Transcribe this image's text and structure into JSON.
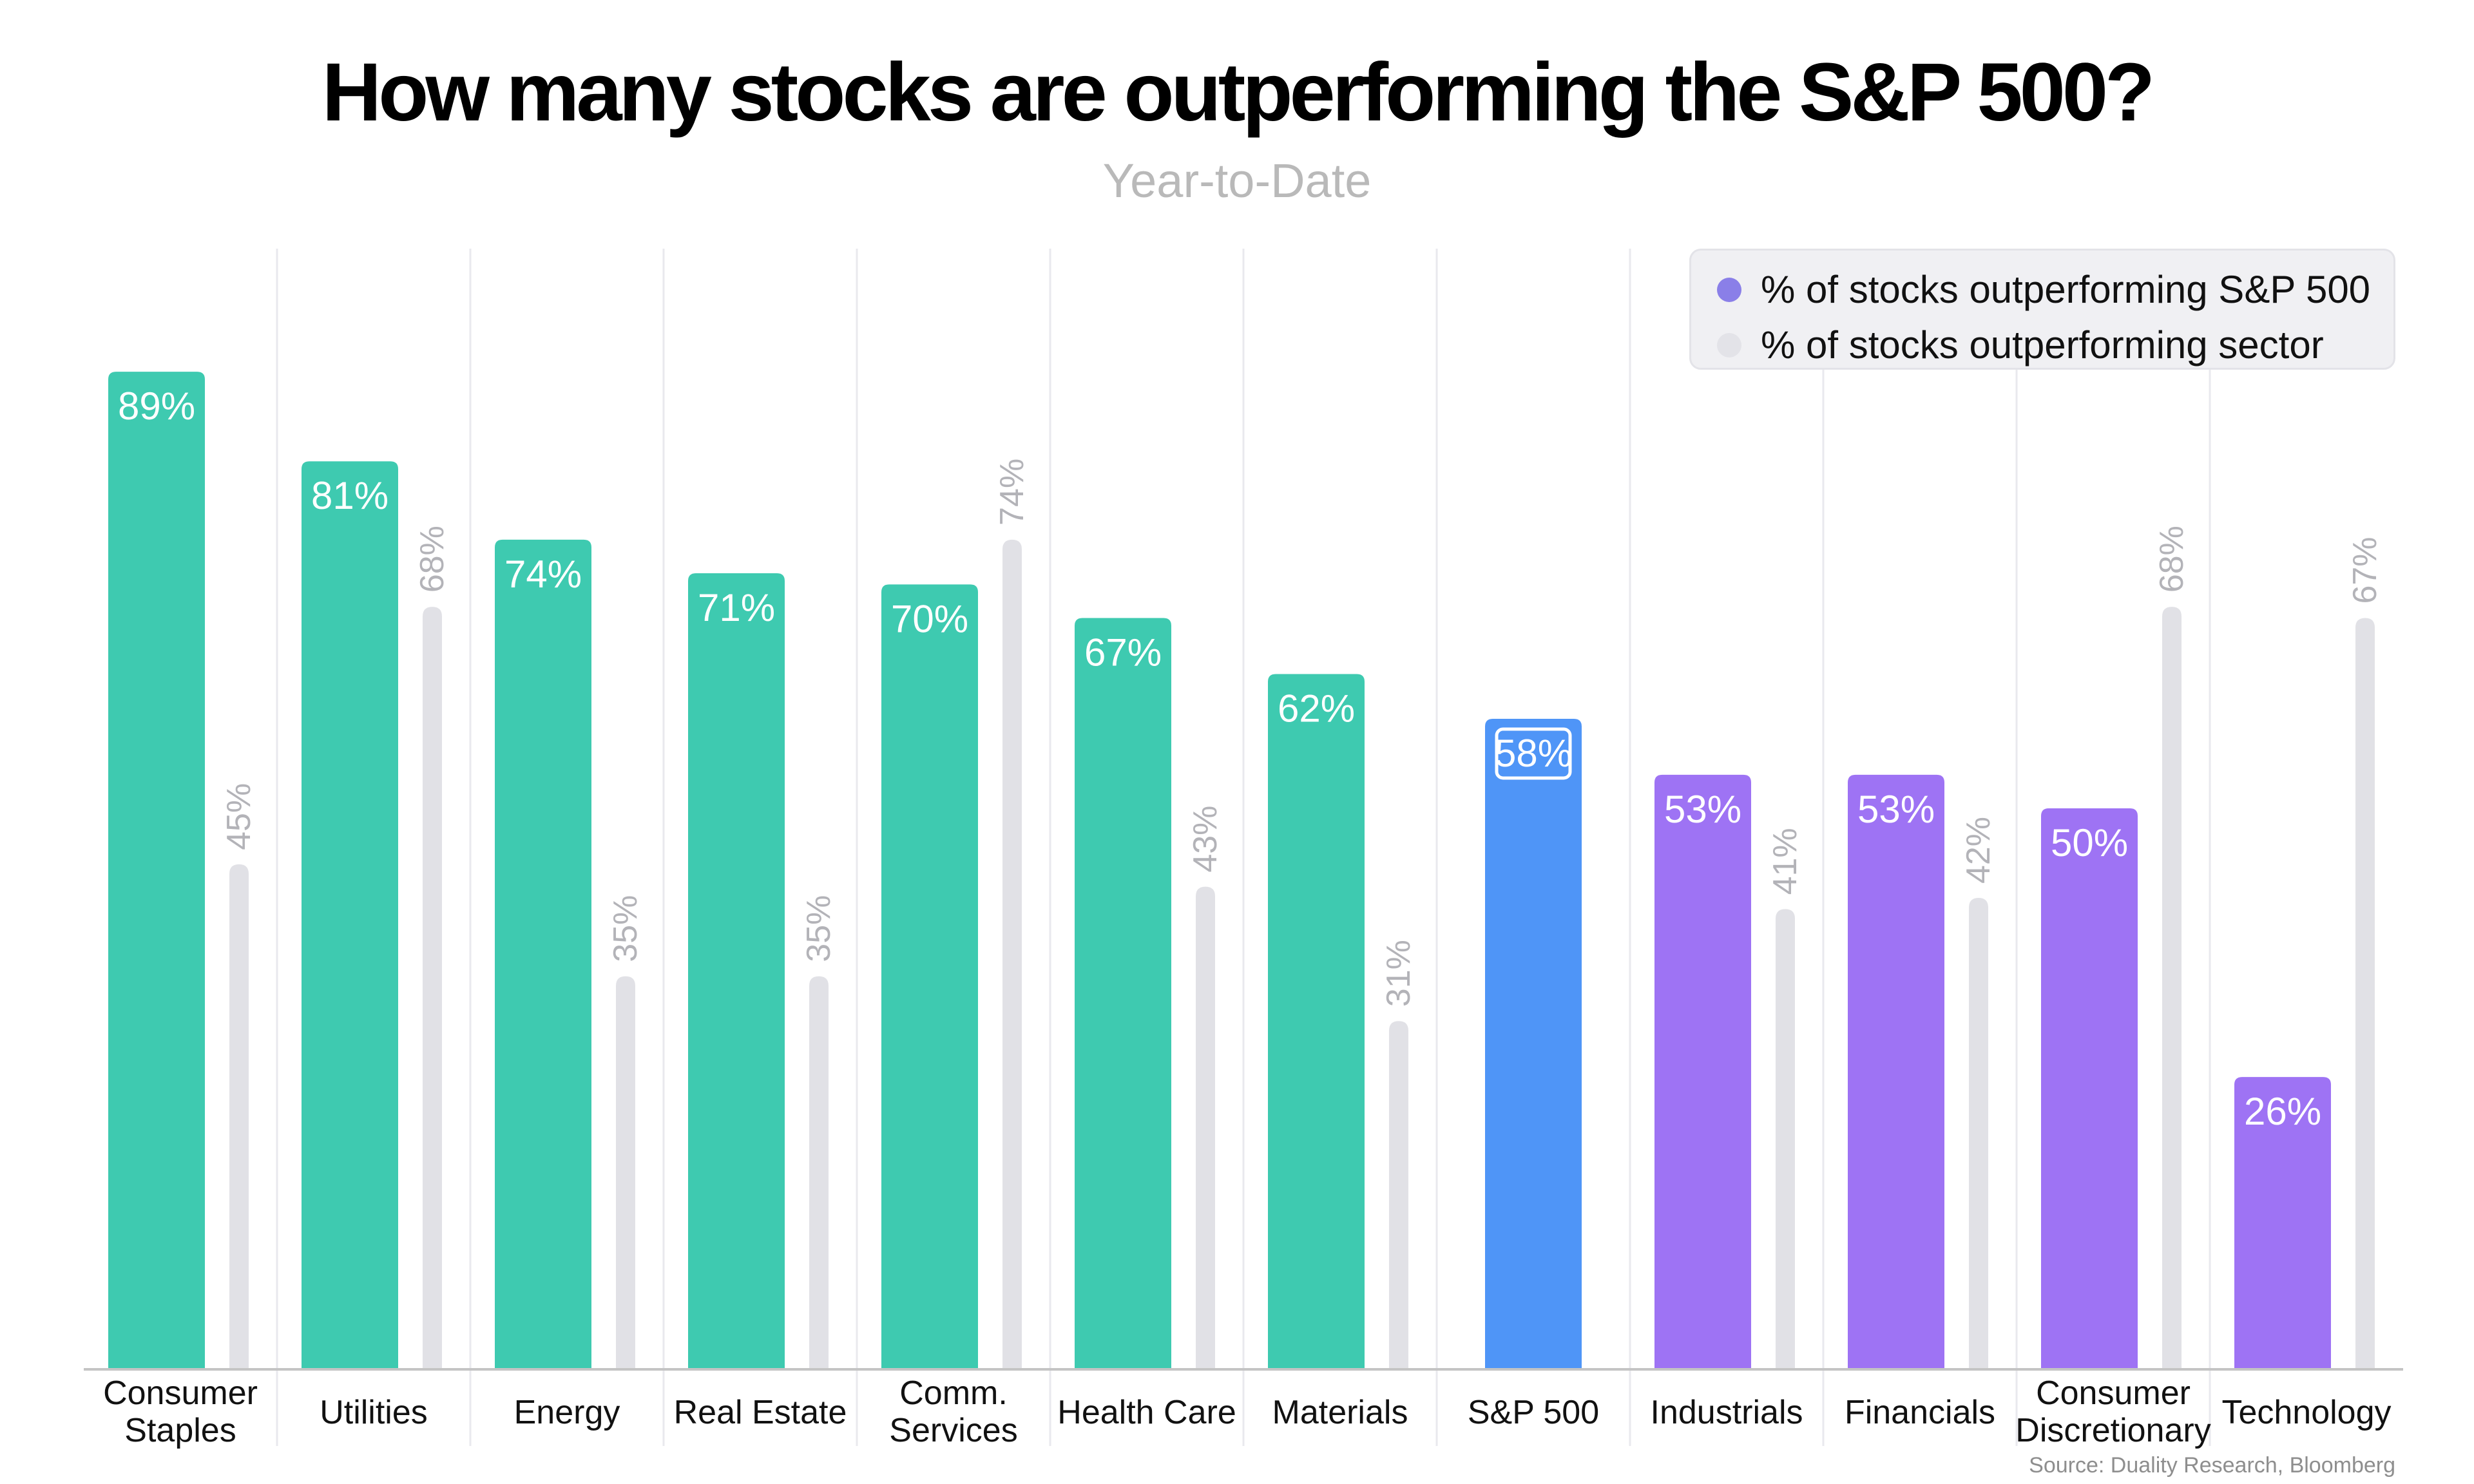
{
  "colors": {
    "primary_bar_teal": "#3ecab0",
    "primary_bar_blue": "#4f95f7",
    "primary_bar_purple": "#9e73f4",
    "secondary_bar": "#e1e1e6",
    "secondary_label": "#b3b3b8",
    "grid_line": "#e9e9ee",
    "axis_line": "#c4c4c4",
    "legend_dot_primary": "#8a7fe8",
    "legend_dot_secondary": "#e3e3e8"
  },
  "chart_data": {
    "type": "bar",
    "title": "How many stocks are outperforming the S&P 500?",
    "subtitle": "Year-to-Date",
    "categories": [
      "Consumer Staples",
      "Utilities",
      "Energy",
      "Real Estate",
      "Comm. Services",
      "Health Care",
      "Materials",
      "S&P 500",
      "Industrials",
      "Financials",
      "Consumer Discretionary",
      "Technology"
    ],
    "category_lines": [
      [
        "Consumer",
        "Staples"
      ],
      [
        "Utilities"
      ],
      [
        "Energy"
      ],
      [
        "Real Estate"
      ],
      [
        "Comm.",
        "Services"
      ],
      [
        "Health Care"
      ],
      [
        "Materials"
      ],
      [
        "S&P 500"
      ],
      [
        "Industrials"
      ],
      [
        "Financials"
      ],
      [
        "Consumer",
        "Discretionary"
      ],
      [
        "Technology"
      ]
    ],
    "series": [
      {
        "name": "% of stocks outperforming S&P 500",
        "values": [
          89,
          81,
          74,
          71,
          70,
          67,
          62,
          58,
          53,
          53,
          50,
          26
        ],
        "bar_colors": [
          "#3ecab0",
          "#3ecab0",
          "#3ecab0",
          "#3ecab0",
          "#3ecab0",
          "#3ecab0",
          "#3ecab0",
          "#4f95f7",
          "#9e73f4",
          "#9e73f4",
          "#9e73f4",
          "#9e73f4"
        ]
      },
      {
        "name": "% of stocks outperforming sector",
        "values": [
          45,
          68,
          35,
          35,
          74,
          43,
          31,
          null,
          41,
          42,
          68,
          67
        ]
      }
    ],
    "value_suffix": "%",
    "ylim": [
      0,
      100
    ],
    "grid": true,
    "legend_position": "top-right",
    "source": "Source: Duality Research, Bloomberg"
  }
}
